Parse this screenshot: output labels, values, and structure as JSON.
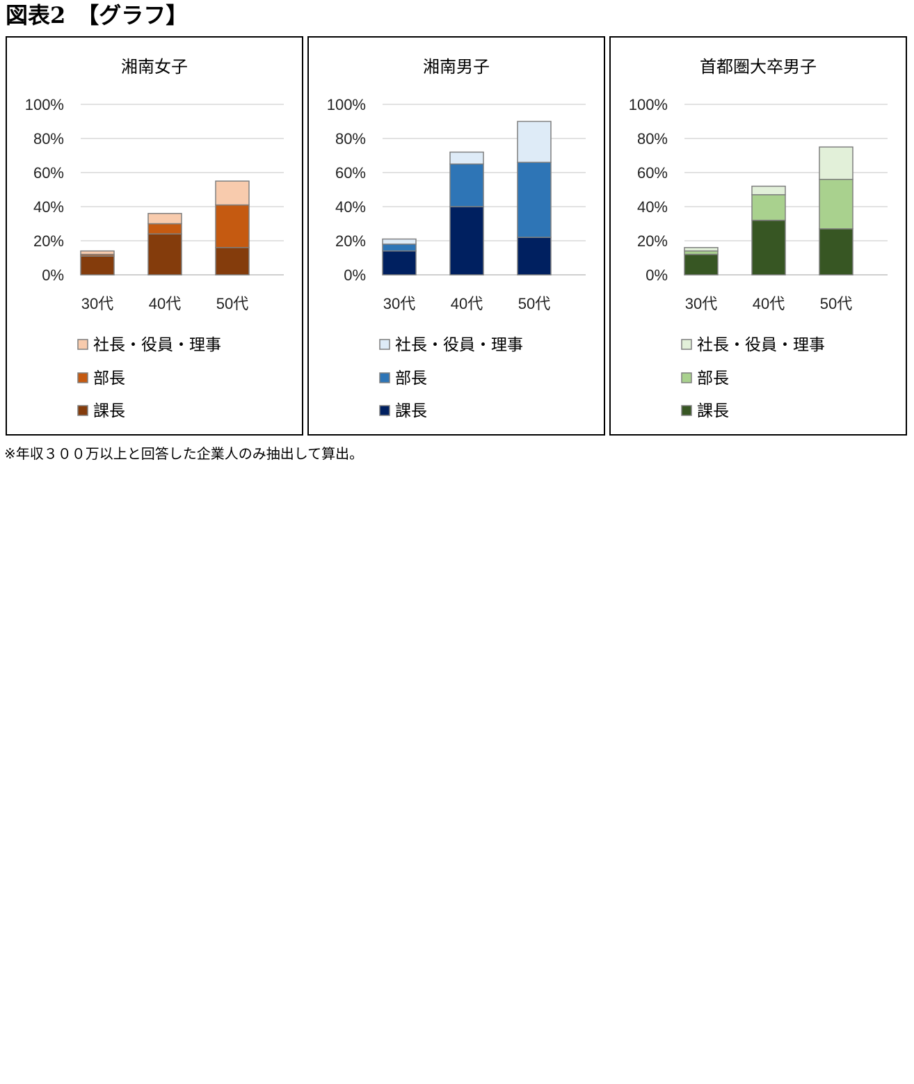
{
  "heading": "図表2　【グラフ】",
  "footnote": "※年収３００万以上と回答した企業人のみ抽出して算出。",
  "chart_data": [
    {
      "type": "bar",
      "stacked": true,
      "title": "湘南女子",
      "categories": [
        "30代",
        "40代",
        "50代"
      ],
      "ylim": [
        0,
        100
      ],
      "yticks": [
        "0%",
        "20%",
        "40%",
        "60%",
        "80%",
        "100%"
      ],
      "grid": true,
      "legend_position": "bottom",
      "series": [
        {
          "name": "課長",
          "values": [
            11,
            24,
            16
          ],
          "color": "#843C0C"
        },
        {
          "name": "部長",
          "values": [
            1,
            6,
            25
          ],
          "color": "#C55A11"
        },
        {
          "name": "社長・役員・理事",
          "values": [
            2,
            6,
            14
          ],
          "color": "#F8CBAD"
        }
      ]
    },
    {
      "type": "bar",
      "stacked": true,
      "title": "湘南男子",
      "categories": [
        "30代",
        "40代",
        "50代"
      ],
      "ylim": [
        0,
        100
      ],
      "yticks": [
        "0%",
        "20%",
        "40%",
        "60%",
        "80%",
        "100%"
      ],
      "grid": true,
      "legend_position": "bottom",
      "series": [
        {
          "name": "課長",
          "values": [
            14,
            40,
            22
          ],
          "color": "#002060"
        },
        {
          "name": "部長",
          "values": [
            4,
            25,
            44
          ],
          "color": "#2E75B6"
        },
        {
          "name": "社長・役員・理事",
          "values": [
            3,
            7,
            24
          ],
          "color": "#DEEBF7"
        }
      ]
    },
    {
      "type": "bar",
      "stacked": true,
      "title": "首都圏大卒男子",
      "categories": [
        "30代",
        "40代",
        "50代"
      ],
      "ylim": [
        0,
        100
      ],
      "yticks": [
        "0%",
        "20%",
        "40%",
        "60%",
        "80%",
        "100%"
      ],
      "grid": true,
      "legend_position": "bottom",
      "series": [
        {
          "name": "課長",
          "values": [
            12,
            32,
            27
          ],
          "color": "#375623"
        },
        {
          "name": "部長",
          "values": [
            2,
            15,
            29
          ],
          "color": "#A9D18E"
        },
        {
          "name": "社長・役員・理事",
          "values": [
            2,
            5,
            19
          ],
          "color": "#E2F0D9"
        }
      ]
    }
  ]
}
